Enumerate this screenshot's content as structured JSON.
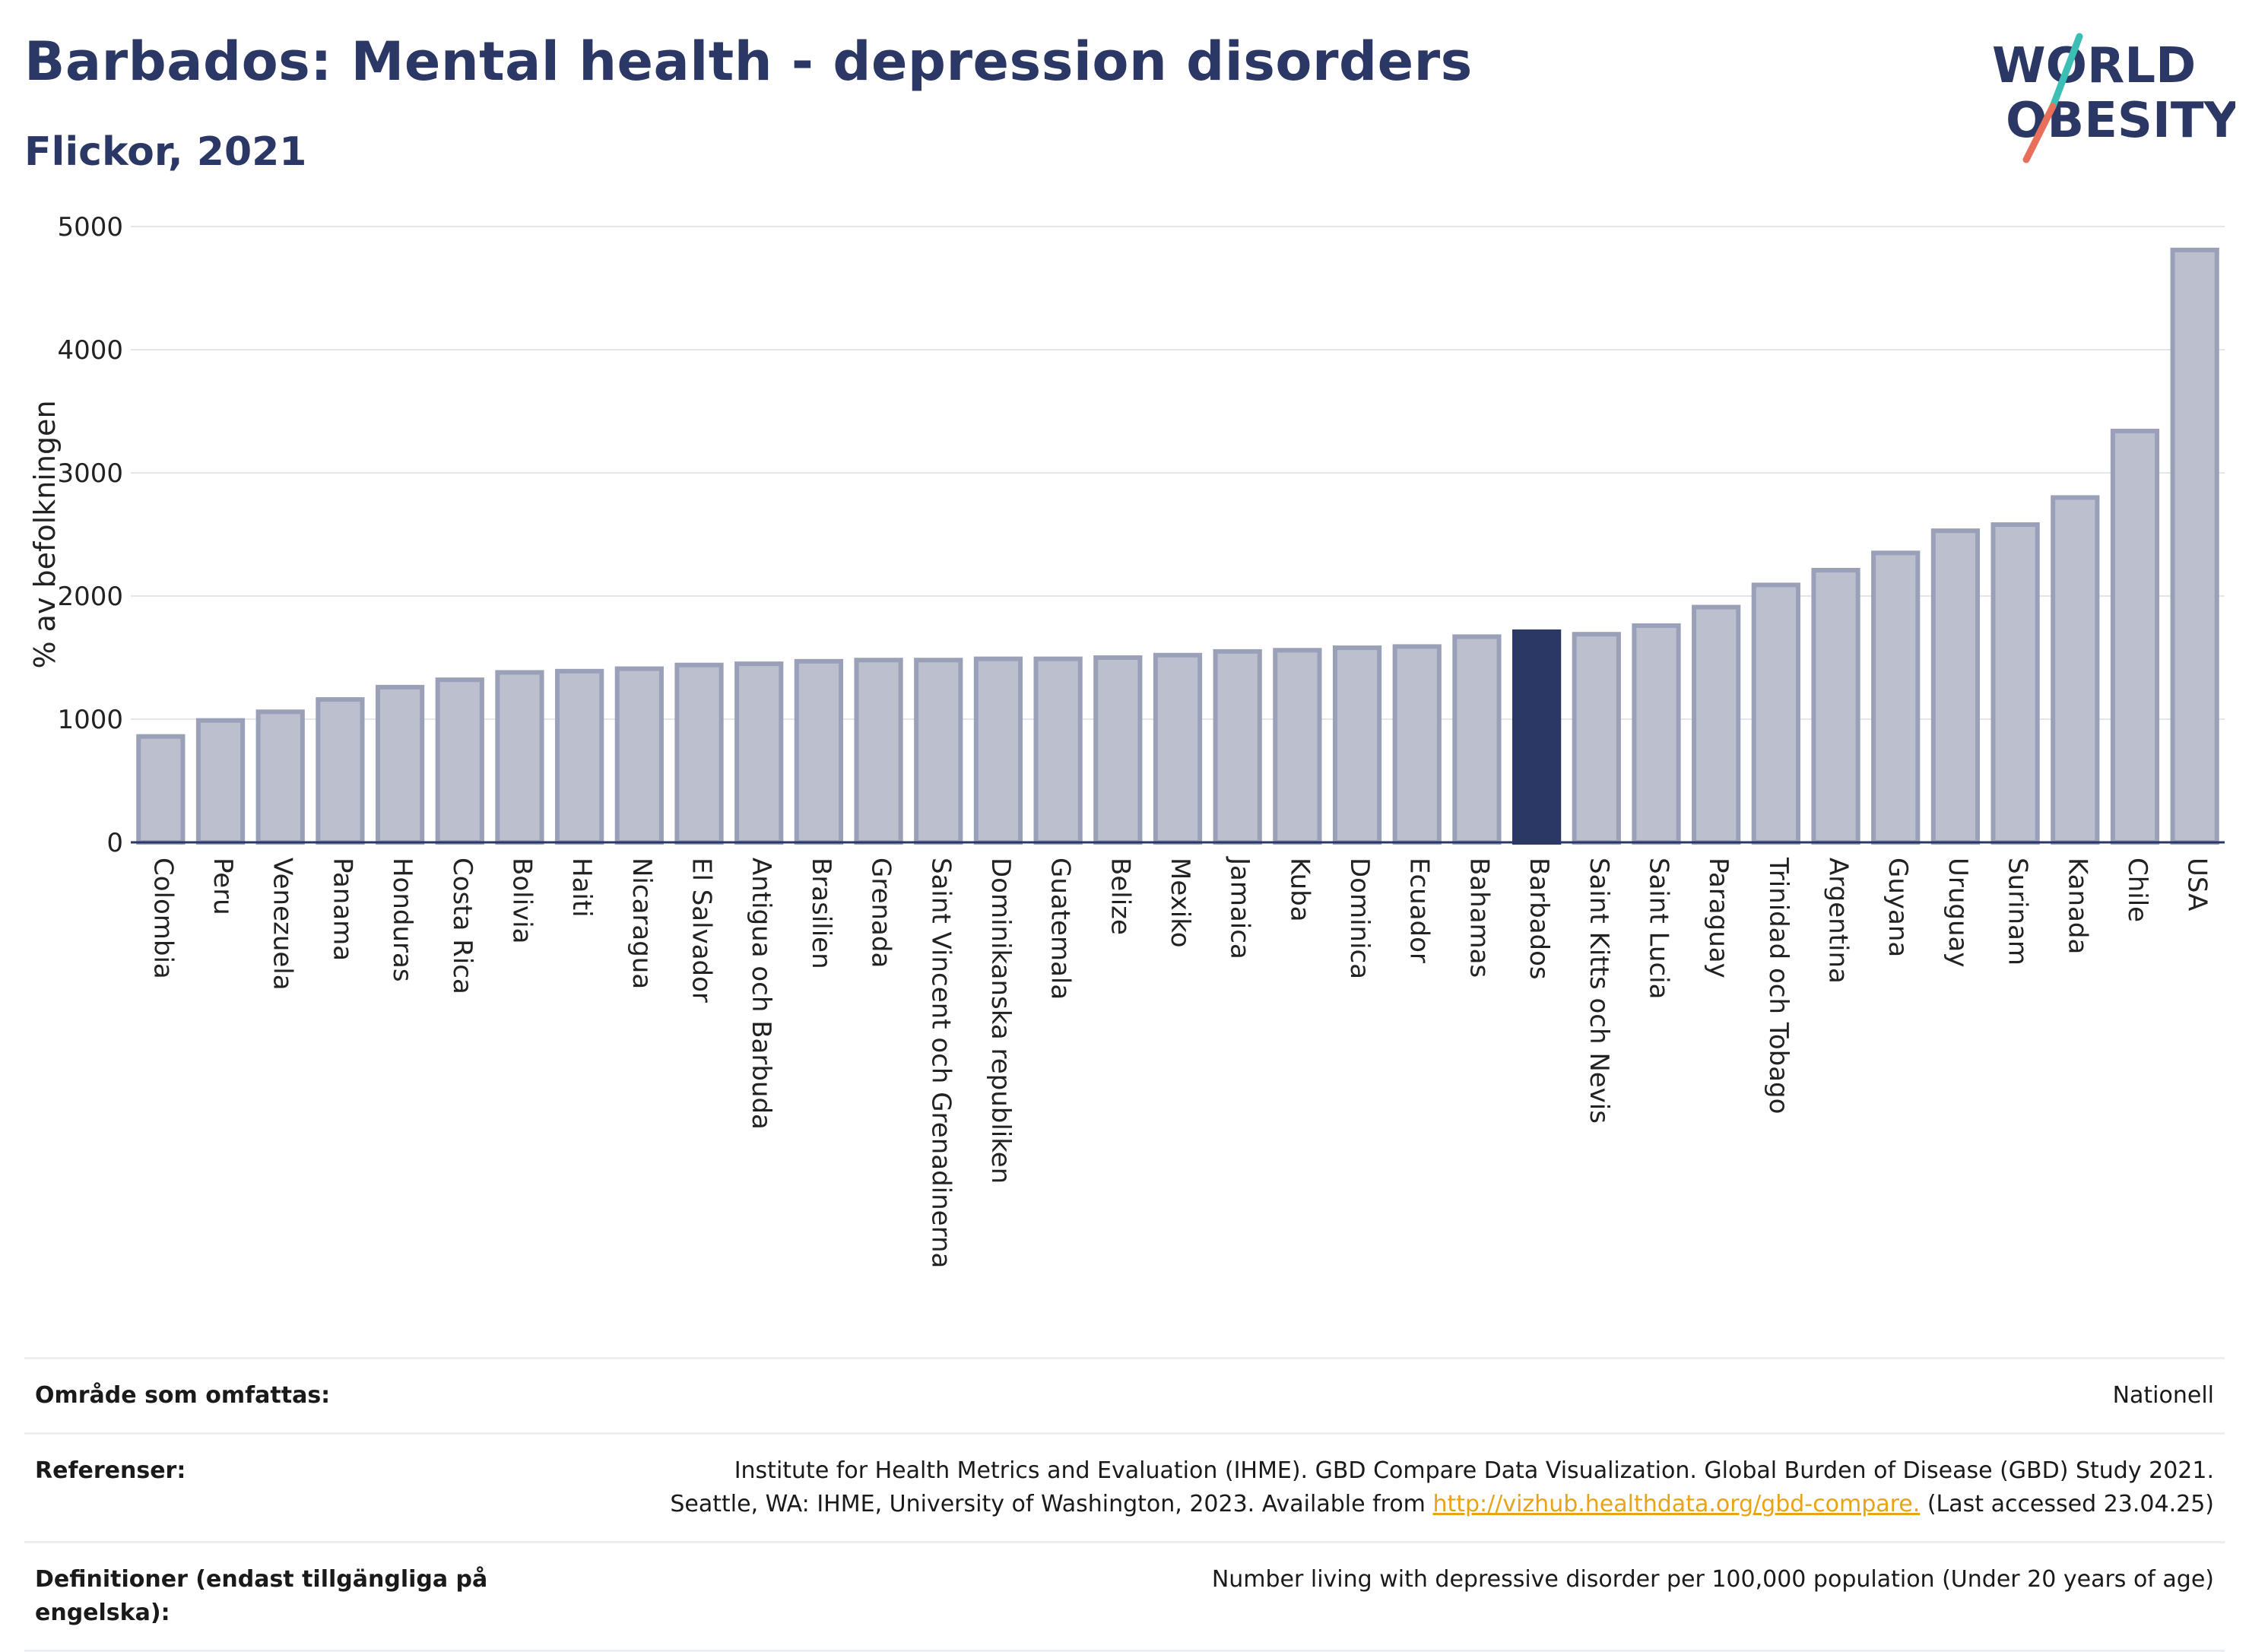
{
  "header": {
    "title": "Barbados: Mental health - depression disorders",
    "subtitle": "Flickor, 2021"
  },
  "logo": {
    "line1": "WORLD",
    "line2": "OBESITY"
  },
  "colors": {
    "highlight": "#2b3765",
    "bar_fill": "#bcc0ce",
    "bar_stroke": "#9aa0b8",
    "title": "#2b3765",
    "link": "#e8a317",
    "logo_teal": "#3bbfb5",
    "logo_red": "#e8705a"
  },
  "chart_data": {
    "type": "bar",
    "ylabel": "% av befolkningen",
    "xlabel": "",
    "ylim": [
      0,
      5000
    ],
    "yticks": [
      0,
      1000,
      2000,
      3000,
      4000,
      5000
    ],
    "grid": true,
    "highlight": "Barbados",
    "categories": [
      "Colombia",
      "Peru",
      "Venezuela",
      "Panama",
      "Honduras",
      "Costa Rica",
      "Bolivia",
      "Haiti",
      "Nicaragua",
      "El Salvador",
      "Antigua och Barbuda",
      "Brasilien",
      "Grenada",
      "Saint Vincent och Grenadinerna",
      "Dominikanska republiken",
      "Guatemala",
      "Belize",
      "Mexiko",
      "Jamaica",
      "Kuba",
      "Dominica",
      "Ecuador",
      "Bahamas",
      "Barbados",
      "Saint Kitts och Nevis",
      "Saint Lucia",
      "Paraguay",
      "Trinidad och Tobago",
      "Argentina",
      "Guyana",
      "Uruguay",
      "Surinam",
      "Kanada",
      "Chile",
      "USA"
    ],
    "values": [
      860,
      990,
      1060,
      1160,
      1260,
      1320,
      1380,
      1390,
      1410,
      1440,
      1450,
      1470,
      1480,
      1480,
      1490,
      1490,
      1500,
      1520,
      1550,
      1560,
      1580,
      1590,
      1670,
      1710,
      1690,
      1760,
      1910,
      2090,
      2210,
      2350,
      2530,
      2580,
      2800,
      3340,
      4810
    ]
  },
  "info": {
    "area_label": "Område som omfattas:",
    "area_value": "Nationell",
    "ref_label": "Referenser:",
    "ref_line1": "Institute for Health Metrics and Evaluation (IHME). GBD Compare Data Visualization. Global Burden of Disease (GBD) Study 2021.",
    "ref_line2_pre": "Seattle, WA: IHME, University of Washington, 2023. Available from ",
    "ref_link": "http://vizhub.healthdata.org/gbd-compare.",
    "ref_line2_post": " (Last accessed 23.04.25)",
    "def_label": "Definitioner (endast tillgängliga på engelska):",
    "def_value": "Number living with depressive disorder per 100,000 population (Under 20 years of age)"
  }
}
